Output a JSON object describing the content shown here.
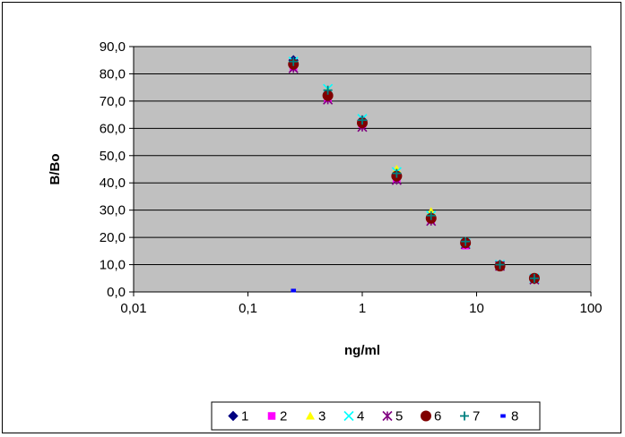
{
  "chart_data": {
    "type": "scatter",
    "title": "",
    "xlabel": "ng/ml",
    "ylabel": "B/Bo",
    "x_scale": "log",
    "xlim": [
      0.01,
      100
    ],
    "ylim": [
      0,
      90
    ],
    "x_tick_labels": [
      "0,01",
      "0,1",
      "1",
      "10",
      "100"
    ],
    "x_ticks": [
      0.01,
      0.1,
      1,
      10,
      100
    ],
    "y_tick_labels": [
      "0,0",
      "10,0",
      "20,0",
      "30,0",
      "40,0",
      "50,0",
      "60,0",
      "70,0",
      "80,0",
      "90,0"
    ],
    "y_ticks": [
      0,
      10,
      20,
      30,
      40,
      50,
      60,
      70,
      80,
      90
    ],
    "grid": "horizontal",
    "plot_background": "#c0c0c0",
    "legend_position": "bottom",
    "series": [
      {
        "name": "1",
        "marker": "diamond",
        "color": "#000080",
        "points": [
          [
            0.25,
            85.0
          ],
          [
            0.5,
            72.5
          ],
          [
            1,
            63.0
          ],
          [
            2,
            43.0
          ],
          [
            4,
            27.5
          ],
          [
            8,
            18.0
          ],
          [
            16,
            10.0
          ],
          [
            32,
            5.0
          ]
        ]
      },
      {
        "name": "2",
        "marker": "square",
        "color": "#ff00ff",
        "points": [
          [
            0.25,
            82.5
          ],
          [
            0.5,
            71.0
          ],
          [
            1,
            61.5
          ],
          [
            2,
            41.5
          ],
          [
            4,
            26.5
          ],
          [
            8,
            17.0
          ],
          [
            16,
            9.5
          ],
          [
            32,
            5.0
          ]
        ]
      },
      {
        "name": "3",
        "marker": "triangle",
        "color": "#ffff00",
        "points": [
          [
            0.25,
            84.0
          ],
          [
            0.5,
            74.0
          ],
          [
            1,
            62.5
          ],
          [
            2,
            45.0
          ],
          [
            4,
            29.5
          ],
          [
            8,
            18.5
          ],
          [
            16,
            10.0
          ],
          [
            32,
            5.5
          ]
        ]
      },
      {
        "name": "4",
        "marker": "x",
        "color": "#00ffff",
        "points": [
          [
            0.25,
            84.5
          ],
          [
            0.5,
            74.5
          ],
          [
            1,
            63.5
          ],
          [
            2,
            44.0
          ],
          [
            4,
            28.0
          ],
          [
            8,
            18.0
          ],
          [
            16,
            10.0
          ],
          [
            32,
            5.0
          ]
        ]
      },
      {
        "name": "5",
        "marker": "star",
        "color": "#800080",
        "points": [
          [
            0.25,
            82.0
          ],
          [
            0.5,
            70.5
          ],
          [
            1,
            60.5
          ],
          [
            2,
            41.0
          ],
          [
            4,
            26.0
          ],
          [
            8,
            17.5
          ],
          [
            16,
            9.5
          ],
          [
            32,
            4.5
          ]
        ]
      },
      {
        "name": "6",
        "marker": "circle",
        "color": "#800000",
        "points": [
          [
            0.25,
            83.5
          ],
          [
            0.5,
            72.0
          ],
          [
            1,
            62.0
          ],
          [
            2,
            42.5
          ],
          [
            4,
            27.0
          ],
          [
            8,
            18.0
          ],
          [
            16,
            9.5
          ],
          [
            32,
            5.0
          ]
        ]
      },
      {
        "name": "7",
        "marker": "plus",
        "color": "#008080",
        "points": [
          [
            0.25,
            84.5
          ],
          [
            0.5,
            74.0
          ],
          [
            1,
            63.0
          ],
          [
            2,
            43.5
          ],
          [
            4,
            28.0
          ],
          [
            8,
            18.5
          ],
          [
            16,
            10.0
          ],
          [
            32,
            5.0
          ]
        ]
      },
      {
        "name": "8",
        "marker": "dash",
        "color": "#0000ff",
        "points": [
          [
            0.25,
            0.5
          ]
        ]
      }
    ]
  }
}
